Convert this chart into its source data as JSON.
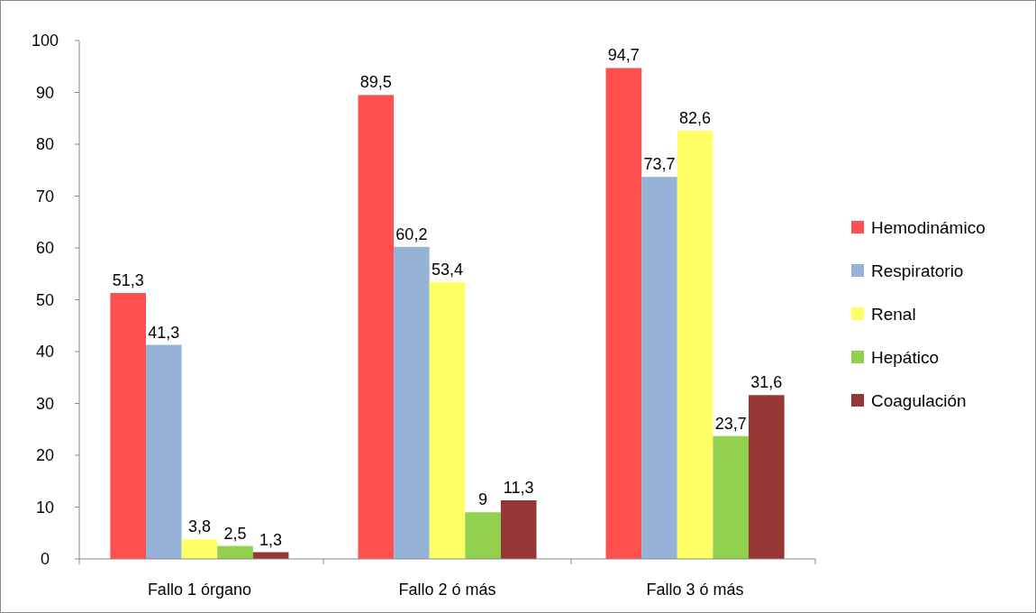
{
  "chart_data": {
    "type": "bar",
    "categories": [
      "Fallo 1 órgano",
      "Fallo 2 ó más",
      "Fallo 3 ó más"
    ],
    "series": [
      {
        "name": "Hemodinámico",
        "color": "#ff5050",
        "values": [
          51.3,
          89.5,
          94.7
        ],
        "value_labels": [
          "51,3",
          "89,5",
          "94,7"
        ]
      },
      {
        "name": "Respiratorio",
        "color": "#95b3d7",
        "values": [
          41.3,
          60.2,
          73.7
        ],
        "value_labels": [
          "41,3",
          "60,2",
          "73,7"
        ]
      },
      {
        "name": "Renal",
        "color": "#ffff66",
        "values": [
          3.8,
          53.4,
          82.6
        ],
        "value_labels": [
          "3,8",
          "53,4",
          "82,6"
        ]
      },
      {
        "name": "Hepático",
        "color": "#92d050",
        "values": [
          2.5,
          9,
          23.7
        ],
        "value_labels": [
          "2,5",
          "9",
          "23,7"
        ]
      },
      {
        "name": "Coagulación",
        "color": "#953735",
        "values": [
          1.3,
          11.3,
          31.6
        ],
        "value_labels": [
          "1,3",
          "11,3",
          "31,6"
        ]
      }
    ],
    "ylim": [
      0,
      100
    ],
    "yticks": [
      0,
      10,
      20,
      30,
      40,
      50,
      60,
      70,
      80,
      90,
      100
    ],
    "grid": false,
    "legend": "right"
  }
}
